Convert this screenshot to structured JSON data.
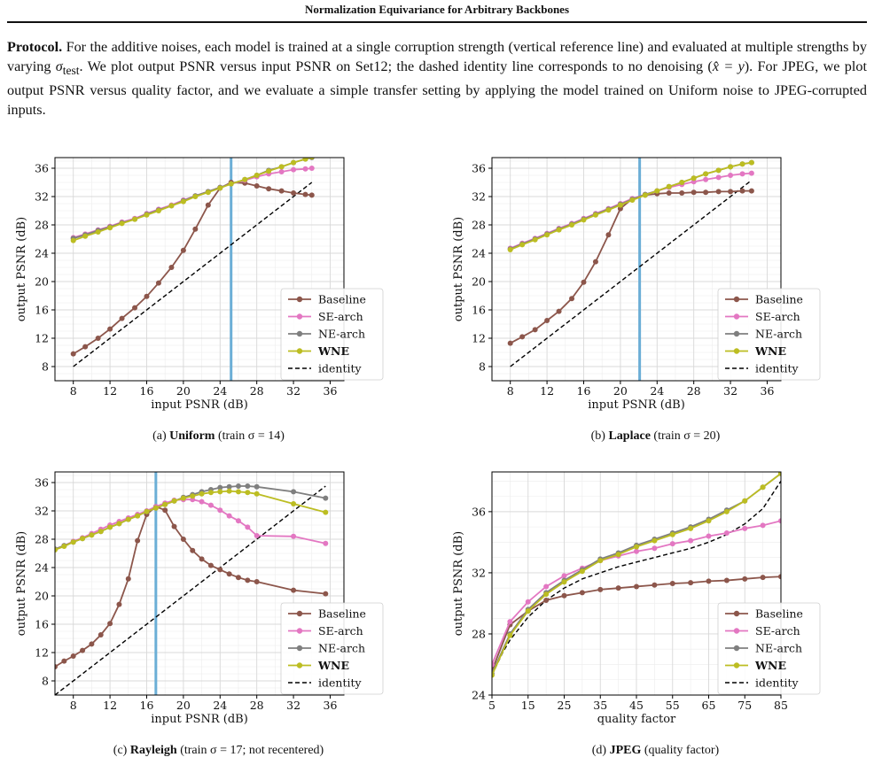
{
  "header": {
    "title": "Normalization Equivariance for Arbitrary Backbones"
  },
  "protocol": {
    "lead": "Protocol.",
    "text_1": " For the additive noises, each model is trained at a single corruption strength (vertical reference line) and evaluated at multiple strengths by varying ",
    "sigma": "σ",
    "sigma_sub": "test",
    "text_2": ". We plot output PSNR versus input PSNR on Set12; the dashed identity line corresponds to no denoising (",
    "identity_math": "x̂ = y",
    "text_3": "). For JPEG, we plot output PSNR versus quality factor, and we evaluate a simple transfer setting by applying the model trained on Uniform noise to JPEG-corrupted inputs."
  },
  "colors": {
    "Baseline": "#8c564b",
    "SE-arch": "#e377c2",
    "NE-arch": "#7f7f7f",
    "WNE": "#bcbd22",
    "identity": "#000000",
    "reference": "#6baed6"
  },
  "captions": [
    {
      "tag": "(a)",
      "bold": "Uniform",
      "rest": " (train σ = 14)"
    },
    {
      "tag": "(b)",
      "bold": "Laplace",
      "rest": " (train σ = 20)"
    },
    {
      "tag": "(c)",
      "bold": "Rayleigh",
      "rest": " (train σ = 17; not recentered)"
    },
    {
      "tag": "(d)",
      "bold": "JPEG",
      "rest": " (quality factor)"
    }
  ],
  "chart_data": [
    {
      "type": "line",
      "xlabel": "input PSNR (dB)",
      "ylabel": "output PSNR (dB)",
      "xlim": [
        6,
        37.5
      ],
      "ylim": [
        6,
        37.5
      ],
      "xticks": [
        8,
        12,
        16,
        20,
        24,
        28,
        32,
        36
      ],
      "yticks": [
        8,
        12,
        16,
        20,
        24,
        28,
        32,
        36
      ],
      "grid": true,
      "legend": "lower-right",
      "reference_x": 25.2,
      "series": [
        {
          "name": "Baseline",
          "x": [
            8,
            9.3,
            10.7,
            12,
            13.3,
            14.7,
            16,
            17.3,
            18.7,
            20,
            21.3,
            22.7,
            24,
            25.2,
            26.7,
            28,
            29.3,
            30.7,
            32,
            33.3,
            34
          ],
          "y": [
            9.8,
            10.8,
            12,
            13.3,
            14.8,
            16.3,
            17.9,
            19.8,
            22,
            24.4,
            27.4,
            30.8,
            33.2,
            34,
            33.9,
            33.5,
            33.1,
            32.8,
            32.5,
            32.3,
            32.2
          ]
        },
        {
          "name": "SE-arch",
          "x": [
            8,
            9.3,
            10.7,
            12,
            13.3,
            14.7,
            16,
            17.3,
            18.7,
            20,
            21.3,
            22.7,
            24,
            25.2,
            26.7,
            28,
            29.3,
            30.7,
            32,
            33.3,
            34
          ],
          "y": [
            26.2,
            26.7,
            27.3,
            27.8,
            28.4,
            28.9,
            29.6,
            30.2,
            30.8,
            31.5,
            32.1,
            32.7,
            33.3,
            33.8,
            34.3,
            34.8,
            35.2,
            35.5,
            35.8,
            35.9,
            36
          ]
        },
        {
          "name": "NE-arch",
          "x": [
            8,
            9.3,
            10.7,
            12,
            13.3,
            14.7,
            16,
            17.3,
            18.7,
            20,
            21.3,
            22.7,
            24,
            25.2,
            26.7,
            28,
            29.3,
            30.7,
            32,
            33.3,
            34
          ],
          "y": [
            26.1,
            26.6,
            27.2,
            27.7,
            28.3,
            28.8,
            29.5,
            30.1,
            30.7,
            31.4,
            32.1,
            32.7,
            33.3,
            33.8,
            34.4,
            35,
            35.7,
            36.2,
            36.8,
            37.3,
            37.5
          ]
        },
        {
          "name": "WNE",
          "label": "WNE",
          "x": [
            8,
            9.3,
            10.7,
            12,
            13.3,
            14.7,
            16,
            17.3,
            18.7,
            20,
            21.3,
            22.7,
            24,
            25.2,
            26.7,
            28,
            29.3,
            30.7,
            32,
            33.3,
            34
          ],
          "y": [
            25.8,
            26.4,
            27,
            27.6,
            28.2,
            28.8,
            29.4,
            30,
            30.7,
            31.3,
            32,
            32.6,
            33.2,
            33.8,
            34.4,
            35,
            35.6,
            36.2,
            36.8,
            37.3,
            37.6
          ]
        },
        {
          "name": "identity",
          "x": [
            8,
            34
          ],
          "y": [
            8,
            34
          ]
        }
      ]
    },
    {
      "type": "line",
      "xlabel": "input PSNR (dB)",
      "ylabel": "output PSNR (dB)",
      "xlim": [
        6,
        37.5
      ],
      "ylim": [
        6,
        37.5
      ],
      "xticks": [
        8,
        12,
        16,
        20,
        24,
        28,
        32,
        36
      ],
      "yticks": [
        8,
        12,
        16,
        20,
        24,
        28,
        32,
        36
      ],
      "grid": true,
      "legend": "lower-right",
      "reference_x": 22.1,
      "series": [
        {
          "name": "Baseline",
          "x": [
            8,
            9.3,
            10.7,
            12,
            13.3,
            14.7,
            16,
            17.3,
            18.7,
            20,
            21.3,
            22.7,
            24,
            25.3,
            26.7,
            28,
            29.3,
            30.7,
            32,
            33.3,
            34.3
          ],
          "y": [
            11.3,
            12.2,
            13.2,
            14.5,
            15.8,
            17.6,
            19.9,
            22.8,
            26.6,
            30.3,
            31.7,
            32.2,
            32.4,
            32.5,
            32.5,
            32.6,
            32.6,
            32.7,
            32.7,
            32.8,
            32.8
          ]
        },
        {
          "name": "SE-arch",
          "x": [
            8,
            9.3,
            10.7,
            12,
            13.3,
            14.7,
            16,
            17.3,
            18.7,
            20,
            21.3,
            22.7,
            24,
            25.3,
            26.7,
            28,
            29.3,
            30.7,
            32,
            33.3,
            34.3
          ],
          "y": [
            24.7,
            25.4,
            26.1,
            26.8,
            27.5,
            28.2,
            28.9,
            29.6,
            30.3,
            31,
            31.7,
            32.3,
            32.8,
            33.3,
            33.7,
            34.1,
            34.4,
            34.7,
            35,
            35.2,
            35.3
          ]
        },
        {
          "name": "NE-arch",
          "x": [
            8,
            9.3,
            10.7,
            12,
            13.3,
            14.7,
            16,
            17.3,
            18.7,
            20,
            21.3,
            22.7,
            24,
            25.3,
            26.7,
            28,
            29.3,
            30.7,
            32,
            33.3,
            34.3
          ],
          "y": [
            24.6,
            25.3,
            26,
            26.7,
            27.4,
            28.1,
            28.8,
            29.5,
            30.2,
            30.9,
            31.6,
            32.3,
            32.8,
            33.4,
            34,
            34.6,
            35.2,
            35.7,
            36.2,
            36.6,
            36.8
          ]
        },
        {
          "name": "WNE",
          "label": "WNE",
          "x": [
            8,
            9.3,
            10.7,
            12,
            13.3,
            14.7,
            16,
            17.3,
            18.7,
            20,
            21.3,
            22.7,
            24,
            25.3,
            26.7,
            28,
            29.3,
            30.7,
            32,
            33.3,
            34.3
          ],
          "y": [
            24.5,
            25.2,
            25.9,
            26.6,
            27.3,
            28,
            28.7,
            29.4,
            30.1,
            30.8,
            31.5,
            32.2,
            32.8,
            33.4,
            34,
            34.6,
            35.2,
            35.7,
            36.2,
            36.6,
            36.8
          ]
        },
        {
          "name": "identity",
          "x": [
            8,
            34.3
          ],
          "y": [
            8,
            34.3
          ]
        }
      ]
    },
    {
      "type": "line",
      "xlabel": "input PSNR (dB)",
      "ylabel": "output PSNR (dB)",
      "xlim": [
        6,
        37.5
      ],
      "ylim": [
        6,
        37.5
      ],
      "xticks": [
        8,
        12,
        16,
        20,
        24,
        28,
        32,
        36
      ],
      "yticks": [
        8,
        12,
        16,
        20,
        24,
        28,
        32,
        36
      ],
      "grid": true,
      "legend": "lower-right",
      "reference_x": 17,
      "series": [
        {
          "name": "Baseline",
          "x": [
            6,
            7,
            8,
            9,
            10,
            11,
            12,
            13,
            14,
            15,
            16,
            17,
            18,
            19,
            20,
            21,
            22,
            23,
            24,
            25,
            26,
            27,
            28,
            32,
            35.5
          ],
          "y": [
            10,
            10.8,
            11.5,
            12.3,
            13.2,
            14.5,
            16.1,
            18.8,
            22.4,
            27.8,
            31.5,
            32.6,
            32.1,
            29.8,
            28,
            26.4,
            25.2,
            24.3,
            23.7,
            23.1,
            22.6,
            22.2,
            22,
            20.8,
            20.3
          ]
        },
        {
          "name": "SE-arch",
          "x": [
            6,
            7,
            8,
            9,
            10,
            11,
            12,
            13,
            14,
            15,
            16,
            17,
            18,
            19,
            20,
            21,
            22,
            23,
            24,
            25,
            26,
            27,
            28,
            32,
            35.5
          ],
          "y": [
            26.6,
            27.1,
            27.7,
            28.2,
            28.8,
            29.4,
            30,
            30.5,
            31,
            31.5,
            32,
            32.6,
            33.1,
            33.5,
            33.6,
            33.6,
            33.3,
            32.8,
            32.1,
            31.3,
            30.6,
            29.7,
            28.5,
            28.4,
            27.4
          ]
        },
        {
          "name": "NE-arch",
          "x": [
            6,
            7,
            8,
            9,
            10,
            11,
            12,
            13,
            14,
            15,
            16,
            17,
            18,
            19,
            20,
            21,
            22,
            23,
            24,
            25,
            26,
            27,
            28,
            32,
            35.5
          ],
          "y": [
            26.6,
            27.1,
            27.6,
            28.1,
            28.6,
            29.1,
            29.7,
            30.2,
            30.8,
            31.3,
            31.9,
            32.4,
            32.9,
            33.4,
            33.9,
            34.3,
            34.7,
            35,
            35.3,
            35.4,
            35.5,
            35.5,
            35.4,
            34.7,
            33.8
          ]
        },
        {
          "name": "WNE",
          "label": "WNE",
          "x": [
            6,
            7,
            8,
            9,
            10,
            11,
            12,
            13,
            14,
            15,
            16,
            17,
            18,
            19,
            20,
            21,
            22,
            23,
            24,
            25,
            26,
            27,
            28,
            32,
            35.5
          ],
          "y": [
            26.5,
            27,
            27.6,
            28.1,
            28.6,
            29.1,
            29.7,
            30.2,
            30.8,
            31.3,
            31.9,
            32.4,
            32.9,
            33.4,
            33.8,
            34.1,
            34.4,
            34.6,
            34.7,
            34.8,
            34.7,
            34.6,
            34.4,
            33,
            31.8
          ]
        },
        {
          "name": "identity",
          "x": [
            6,
            35.5
          ],
          "y": [
            6,
            35.5
          ]
        }
      ]
    },
    {
      "type": "line",
      "xlabel": "quality factor",
      "ylabel": "output PSNR (dB)",
      "xlim": [
        5,
        85
      ],
      "ylim": [
        24,
        38.6
      ],
      "xticks": [
        5,
        15,
        25,
        35,
        45,
        55,
        65,
        75,
        85
      ],
      "yticks": [
        24,
        28,
        32,
        36
      ],
      "grid": true,
      "legend": "lower-right",
      "series": [
        {
          "name": "Baseline",
          "x": [
            5,
            10,
            15,
            20,
            25,
            30,
            35,
            40,
            45,
            50,
            55,
            60,
            65,
            70,
            75,
            80,
            85
          ],
          "y": [
            25.6,
            28.6,
            29.5,
            30.2,
            30.5,
            30.7,
            30.9,
            31,
            31.1,
            31.2,
            31.3,
            31.35,
            31.45,
            31.5,
            31.6,
            31.7,
            31.75
          ]
        },
        {
          "name": "SE-arch",
          "x": [
            5,
            10,
            15,
            20,
            25,
            30,
            35,
            40,
            45,
            50,
            55,
            60,
            65,
            70,
            75,
            80,
            85
          ],
          "y": [
            26,
            28.8,
            30.1,
            31.1,
            31.8,
            32.3,
            32.8,
            33.1,
            33.4,
            33.6,
            33.9,
            34.1,
            34.4,
            34.6,
            34.9,
            35.1,
            35.4
          ]
        },
        {
          "name": "NE-arch",
          "x": [
            5,
            10,
            15,
            20,
            25,
            30,
            35,
            40,
            45,
            50,
            55,
            60,
            65,
            70,
            75,
            80,
            85
          ],
          "y": [
            25.4,
            28,
            29.6,
            30.7,
            31.5,
            32.2,
            32.9,
            33.3,
            33.8,
            34.2,
            34.6,
            35,
            35.5,
            36.1,
            36.7,
            37.6,
            38.5
          ]
        },
        {
          "name": "WNE",
          "label": "WNE",
          "x": [
            5,
            10,
            15,
            20,
            25,
            30,
            35,
            40,
            45,
            50,
            55,
            60,
            65,
            70,
            75,
            80,
            85
          ],
          "y": [
            25.3,
            27.9,
            29.5,
            30.6,
            31.4,
            32.1,
            32.8,
            33.2,
            33.7,
            34.1,
            34.5,
            34.9,
            35.4,
            36,
            36.7,
            37.6,
            38.5
          ]
        },
        {
          "name": "identity",
          "x": [
            5,
            8,
            10,
            15,
            20,
            25,
            30,
            35,
            40,
            45,
            50,
            55,
            60,
            65,
            70,
            75,
            80,
            85
          ],
          "y": [
            25.3,
            26.8,
            27.6,
            29.1,
            30.2,
            31,
            31.6,
            32,
            32.4,
            32.7,
            33,
            33.3,
            33.6,
            34,
            34.5,
            35.2,
            36.2,
            38
          ]
        }
      ]
    }
  ]
}
